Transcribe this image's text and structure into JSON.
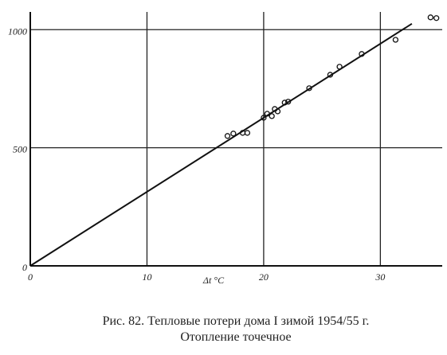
{
  "chart_data": {
    "type": "scatter",
    "x_label": "Δt °C",
    "caption": [
      "Рис. 82. Тепловые потери дома I зимой 1954/55 г.",
      "Отопление точечное"
    ],
    "xlim": [
      0,
      35.3
    ],
    "ylim": [
      0,
      1075
    ],
    "xticks": [
      0,
      10,
      20,
      30
    ],
    "yticks": [
      0,
      500,
      1000
    ],
    "grid": true,
    "series": [
      {
        "kind": "points",
        "color": "#111111",
        "x": [
          16.9,
          17.4,
          18.2,
          18.6,
          20.0,
          20.3,
          20.7,
          20.95,
          21.2,
          21.8,
          22.1,
          23.9,
          25.7,
          26.5,
          28.4,
          31.3,
          34.3,
          34.8
        ],
        "values": [
          550,
          560,
          563,
          563,
          627,
          644,
          634,
          664,
          654,
          691,
          695,
          752,
          809,
          843,
          897,
          957,
          1052,
          1049
        ]
      },
      {
        "kind": "line",
        "color": "#111111",
        "x": [
          0,
          32.7
        ],
        "values": [
          0,
          1025
        ]
      }
    ]
  }
}
